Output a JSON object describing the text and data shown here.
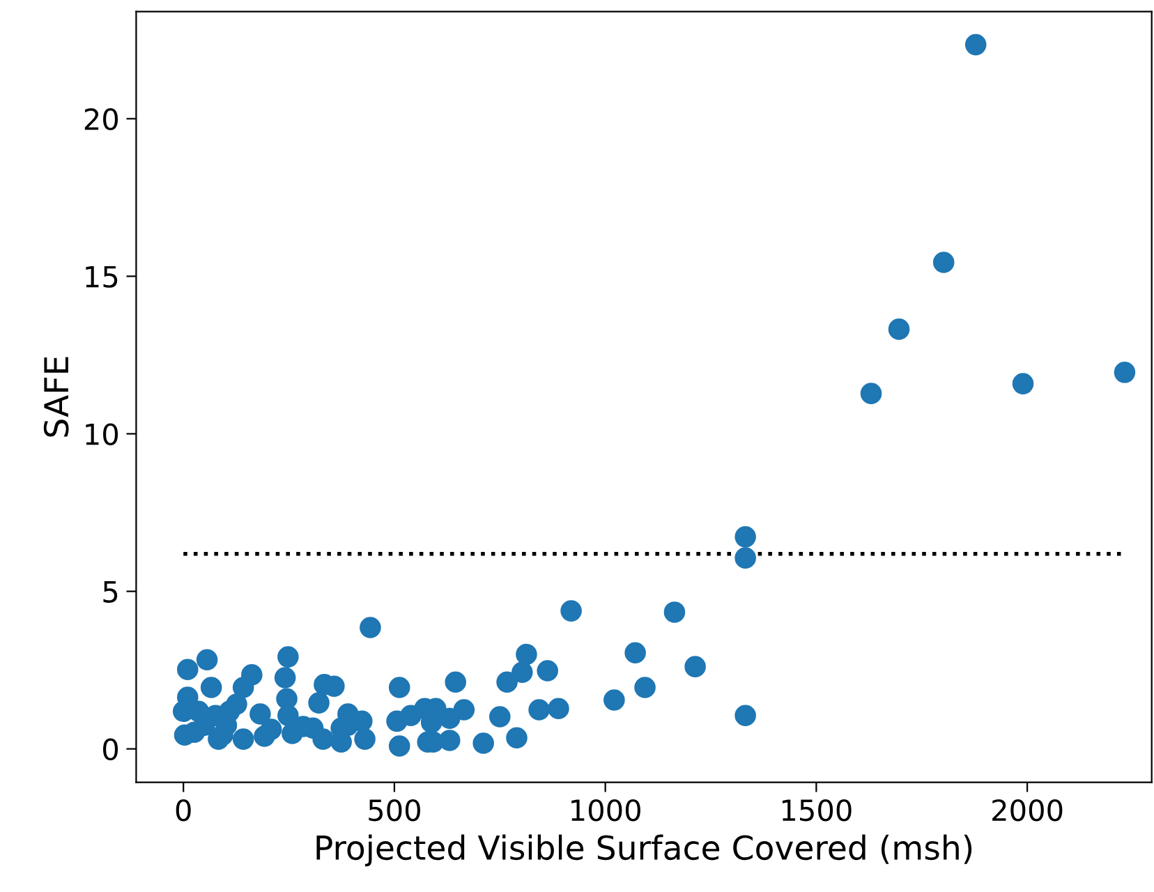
{
  "chart_data": {
    "type": "scatter",
    "xlabel": "Projected Visible Surface Covered (msh)",
    "ylabel": "SAFE",
    "xlim": [
      -112,
      2295
    ],
    "ylim": [
      -1.06,
      23.4
    ],
    "xticks": [
      0,
      500,
      1000,
      1500,
      2000
    ],
    "yticks": [
      0,
      5,
      10,
      15,
      20
    ],
    "grid": false,
    "series": [
      {
        "marker": "circle",
        "color": "#1f77b4",
        "x": [
          1878,
          1802,
          1696,
          1630,
          1990,
          2231,
          1332,
          1332,
          1332,
          919,
          1164,
          1071,
          1094,
          1213,
          1021,
          443,
          813,
          863,
          803,
          767,
          843,
          889,
          750,
          790,
          711,
          56,
          10,
          248,
          241,
          162,
          66,
          142,
          10,
          245,
          334,
          357,
          321,
          512,
          126,
          0,
          36,
          182,
          248,
          390,
          423,
          506,
          539,
          572,
          3,
          83,
          142,
          192,
          258,
          307,
          331,
          374,
          430,
          512,
          579,
          50,
          102,
          374,
          598,
          631,
          588,
          665,
          631,
          592,
          645,
          76,
          26,
          109,
          390,
          284,
          208,
          93
        ],
        "values": [
          22.35,
          15.44,
          13.32,
          11.28,
          11.59,
          11.95,
          6.73,
          6.06,
          1.06,
          4.38,
          4.34,
          3.05,
          1.95,
          2.61,
          1.55,
          3.85,
          3.0,
          2.48,
          2.43,
          2.12,
          1.24,
          1.28,
          1.02,
          0.35,
          0.18,
          2.83,
          2.52,
          2.92,
          2.26,
          2.35,
          1.95,
          1.95,
          1.64,
          1.59,
          2.04,
          1.99,
          1.46,
          1.95,
          1.42,
          1.19,
          1.19,
          1.11,
          1.06,
          1.11,
          0.88,
          0.88,
          1.06,
          1.28,
          0.44,
          0.31,
          0.31,
          0.4,
          0.49,
          0.66,
          0.31,
          0.22,
          0.31,
          0.09,
          0.22,
          0.75,
          0.75,
          0.66,
          1.28,
          0.97,
          0.84,
          1.24,
          0.27,
          0.22,
          2.12,
          1.06,
          0.53,
          1.19,
          0.75,
          0.71,
          0.62,
          0.44
        ]
      },
      {
        "type": "line",
        "marker": "none",
        "line_style": "dotted",
        "color": "#000000",
        "x": [
          0,
          2230
        ],
        "values": [
          6.19,
          6.19
        ]
      }
    ]
  }
}
